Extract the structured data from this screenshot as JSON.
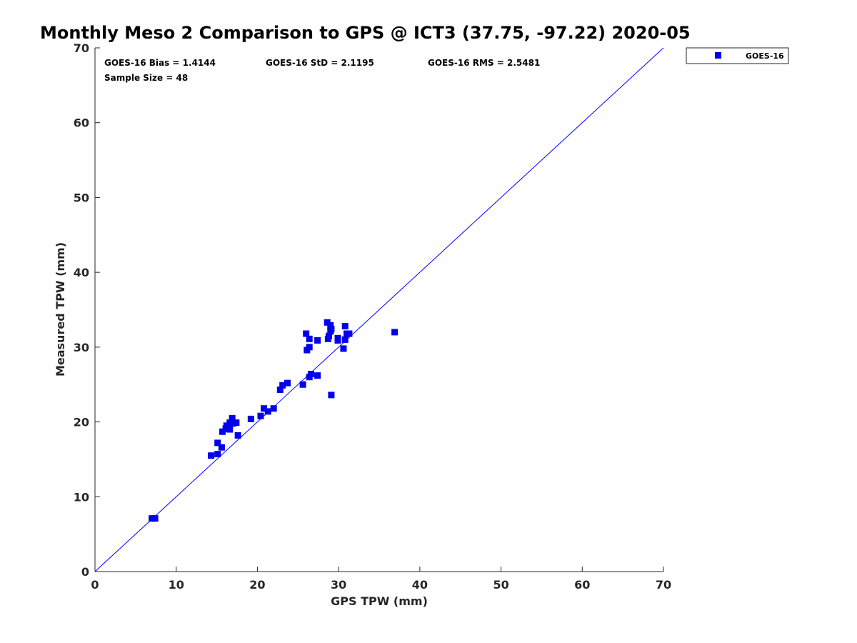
{
  "chart_data": {
    "type": "scatter",
    "title": "Monthly Meso 2 Comparison to GPS @ ICT3 (37.75, -97.22) 2020-05",
    "xlabel": "GPS TPW (mm)",
    "ylabel": "Measured TPW (mm)",
    "xlim": [
      0,
      70
    ],
    "ylim": [
      0,
      70
    ],
    "xticks": [
      "0",
      "10",
      "20",
      "30",
      "40",
      "50",
      "60",
      "70"
    ],
    "yticks": [
      "0",
      "10",
      "20",
      "30",
      "40",
      "50",
      "60",
      "70"
    ],
    "grid": false,
    "legend_position": "top-right-outside",
    "stats": {
      "bias": "GOES-16 Bias = 1.4144",
      "std": "GOES-16 StD = 2.1195",
      "rms": "GOES-16 RMS = 2.5481",
      "sample": "Sample Size = 48"
    },
    "reference_line": {
      "x": [
        0,
        70
      ],
      "y": [
        0,
        70
      ],
      "color": "#0000ff"
    },
    "series": [
      {
        "name": "GOES-16",
        "color": "#0000ee",
        "marker": "square",
        "points": [
          [
            7.0,
            7.1
          ],
          [
            7.4,
            7.1
          ],
          [
            14.3,
            15.5
          ],
          [
            15.1,
            15.7
          ],
          [
            15.1,
            17.2
          ],
          [
            15.6,
            16.6
          ],
          [
            15.7,
            18.7
          ],
          [
            16.1,
            19.1
          ],
          [
            16.2,
            19.5
          ],
          [
            16.6,
            19.0
          ],
          [
            16.6,
            19.9
          ],
          [
            16.9,
            20.5
          ],
          [
            17.0,
            19.8
          ],
          [
            17.4,
            19.9
          ],
          [
            17.6,
            18.2
          ],
          [
            19.2,
            20.4
          ],
          [
            20.4,
            20.8
          ],
          [
            20.8,
            21.8
          ],
          [
            21.3,
            21.4
          ],
          [
            22.0,
            21.8
          ],
          [
            22.8,
            24.3
          ],
          [
            23.1,
            24.9
          ],
          [
            23.7,
            25.2
          ],
          [
            25.6,
            25.0
          ],
          [
            26.0,
            31.8
          ],
          [
            26.1,
            29.6
          ],
          [
            26.4,
            31.1
          ],
          [
            26.4,
            30.0
          ],
          [
            26.4,
            26.0
          ],
          [
            26.6,
            26.4
          ],
          [
            27.4,
            26.2
          ],
          [
            27.4,
            30.9
          ],
          [
            28.6,
            33.3
          ],
          [
            28.7,
            31.1
          ],
          [
            28.8,
            31.5
          ],
          [
            29.0,
            32.1
          ],
          [
            29.0,
            32.9
          ],
          [
            29.1,
            32.4
          ],
          [
            29.1,
            23.6
          ],
          [
            29.9,
            31.2
          ],
          [
            29.9,
            30.9
          ],
          [
            30.6,
            29.8
          ],
          [
            30.8,
            32.8
          ],
          [
            30.8,
            31.0
          ],
          [
            31.0,
            31.8
          ],
          [
            31.3,
            31.8
          ],
          [
            36.9,
            32.0
          ],
          [
            29.9,
            31.0
          ]
        ]
      }
    ]
  }
}
